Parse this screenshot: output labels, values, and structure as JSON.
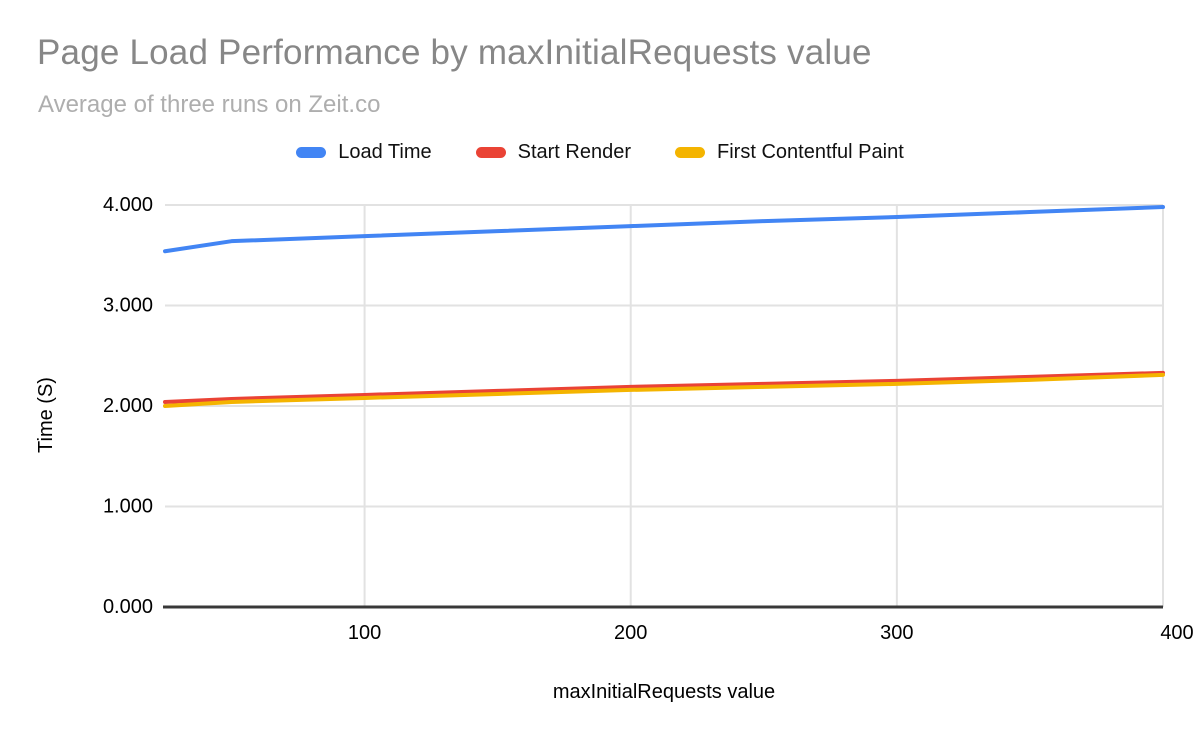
{
  "header": {
    "title": "Page Load Performance by maxInitialRequests value",
    "subtitle": "Average of three runs on Zeit.co"
  },
  "legend": {
    "items": [
      {
        "label": "Load Time",
        "color": "#4285f4"
      },
      {
        "label": "Start Render",
        "color": "#ea4335"
      },
      {
        "label": "First Contentful Paint",
        "color": "#f4b400"
      }
    ],
    "position": "top-center"
  },
  "chart_data": {
    "type": "line",
    "title": "Page Load Performance by maxInitialRequests value",
    "subtitle": "Average of three runs on Zeit.co",
    "xlabel": "maxInitialRequests value",
    "ylabel": "Time (S)",
    "x": [
      25,
      50,
      100,
      150,
      200,
      250,
      300,
      350,
      400
    ],
    "series": [
      {
        "name": "Load Time",
        "color": "#4285f4",
        "values": [
          3.54,
          3.64,
          3.69,
          3.74,
          3.79,
          3.84,
          3.88,
          3.93,
          3.98
        ]
      },
      {
        "name": "Start Render",
        "color": "#ea4335",
        "values": [
          2.04,
          2.07,
          2.11,
          2.15,
          2.19,
          2.22,
          2.25,
          2.29,
          2.33
        ]
      },
      {
        "name": "First Contentful Paint",
        "color": "#f4b400",
        "values": [
          2.0,
          2.04,
          2.08,
          2.12,
          2.16,
          2.19,
          2.22,
          2.26,
          2.31
        ]
      }
    ],
    "xlim": [
      25,
      400
    ],
    "ylim": [
      0,
      4
    ],
    "x_ticks": [
      100,
      200,
      300,
      400
    ],
    "x_tick_labels": [
      "100",
      "200",
      "300",
      "400"
    ],
    "y_ticks": [
      0,
      1,
      2,
      3,
      4
    ],
    "y_tick_labels": [
      "0.000",
      "1.000",
      "2.000",
      "3.000",
      "4.000"
    ],
    "grid": true,
    "colors": {
      "gridline": "#e2e2e2",
      "axis_line": "#383838",
      "tick_label": "#000000"
    }
  }
}
